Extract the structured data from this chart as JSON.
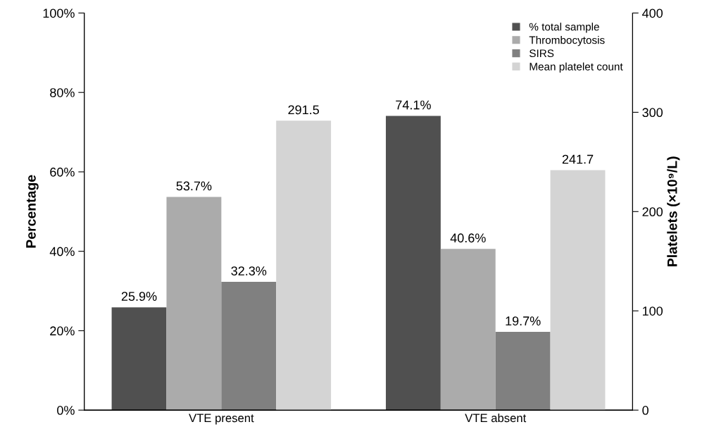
{
  "chart_data": {
    "type": "bar",
    "categories": [
      "VTE present",
      "VTE absent"
    ],
    "ylabel": "Percentage",
    "y2label": "Platelets (×10⁹/L)",
    "ylim": [
      0,
      100
    ],
    "yticks": [
      {
        "value": 0,
        "label": "0%"
      },
      {
        "value": 20,
        "label": "20%"
      },
      {
        "value": 40,
        "label": "40%"
      },
      {
        "value": 60,
        "label": "60%"
      },
      {
        "value": 80,
        "label": "80%"
      },
      {
        "value": 100,
        "label": "100%"
      }
    ],
    "y2lim": [
      0,
      400
    ],
    "y2ticks": [
      0,
      100,
      200,
      300,
      400
    ],
    "series": [
      {
        "name": "% total sample",
        "color": "#505050",
        "values": [
          25.9,
          74.1
        ],
        "value_labels": [
          "25.9%",
          "74.1%"
        ]
      },
      {
        "name": "Thrombocytosis",
        "color": "#ababab",
        "values": [
          53.7,
          40.6
        ],
        "value_labels": [
          "53.7%",
          "40.6%"
        ]
      },
      {
        "name": "SIRS",
        "color": "#808080",
        "values": [
          32.3,
          19.7
        ],
        "value_labels": [
          "32.3%",
          "19.7%"
        ]
      },
      {
        "name": "Mean platelet count",
        "color": "#d4d4d4",
        "values": [
          291.5,
          241.7
        ],
        "value_labels": [
          "291.5",
          "241.7"
        ],
        "axis": "y2"
      }
    ],
    "legend": "top right",
    "grid": false
  }
}
